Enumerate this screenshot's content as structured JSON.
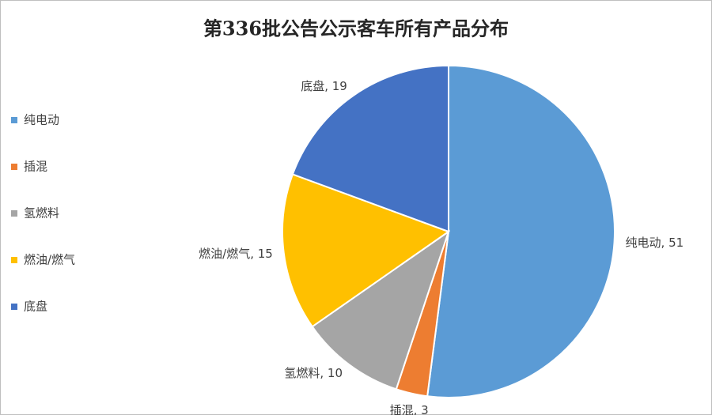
{
  "chart_data": {
    "type": "pie",
    "title": "第336批公告公示客车所有产品分布",
    "categories": [
      "纯电动",
      "插混",
      "氢燃料",
      "燃油/燃气",
      "底盘"
    ],
    "values": [
      51,
      3,
      10,
      15,
      19
    ],
    "value_labels": [
      "纯电动, 51",
      "插混, 3",
      "氢燃料, 10",
      "燃油/燃气, 15",
      "底盘, 19"
    ],
    "colors": [
      "#5b9bd5",
      "#ed7d31",
      "#a5a5a5",
      "#ffc000",
      "#4472c4"
    ],
    "legend": "left"
  }
}
